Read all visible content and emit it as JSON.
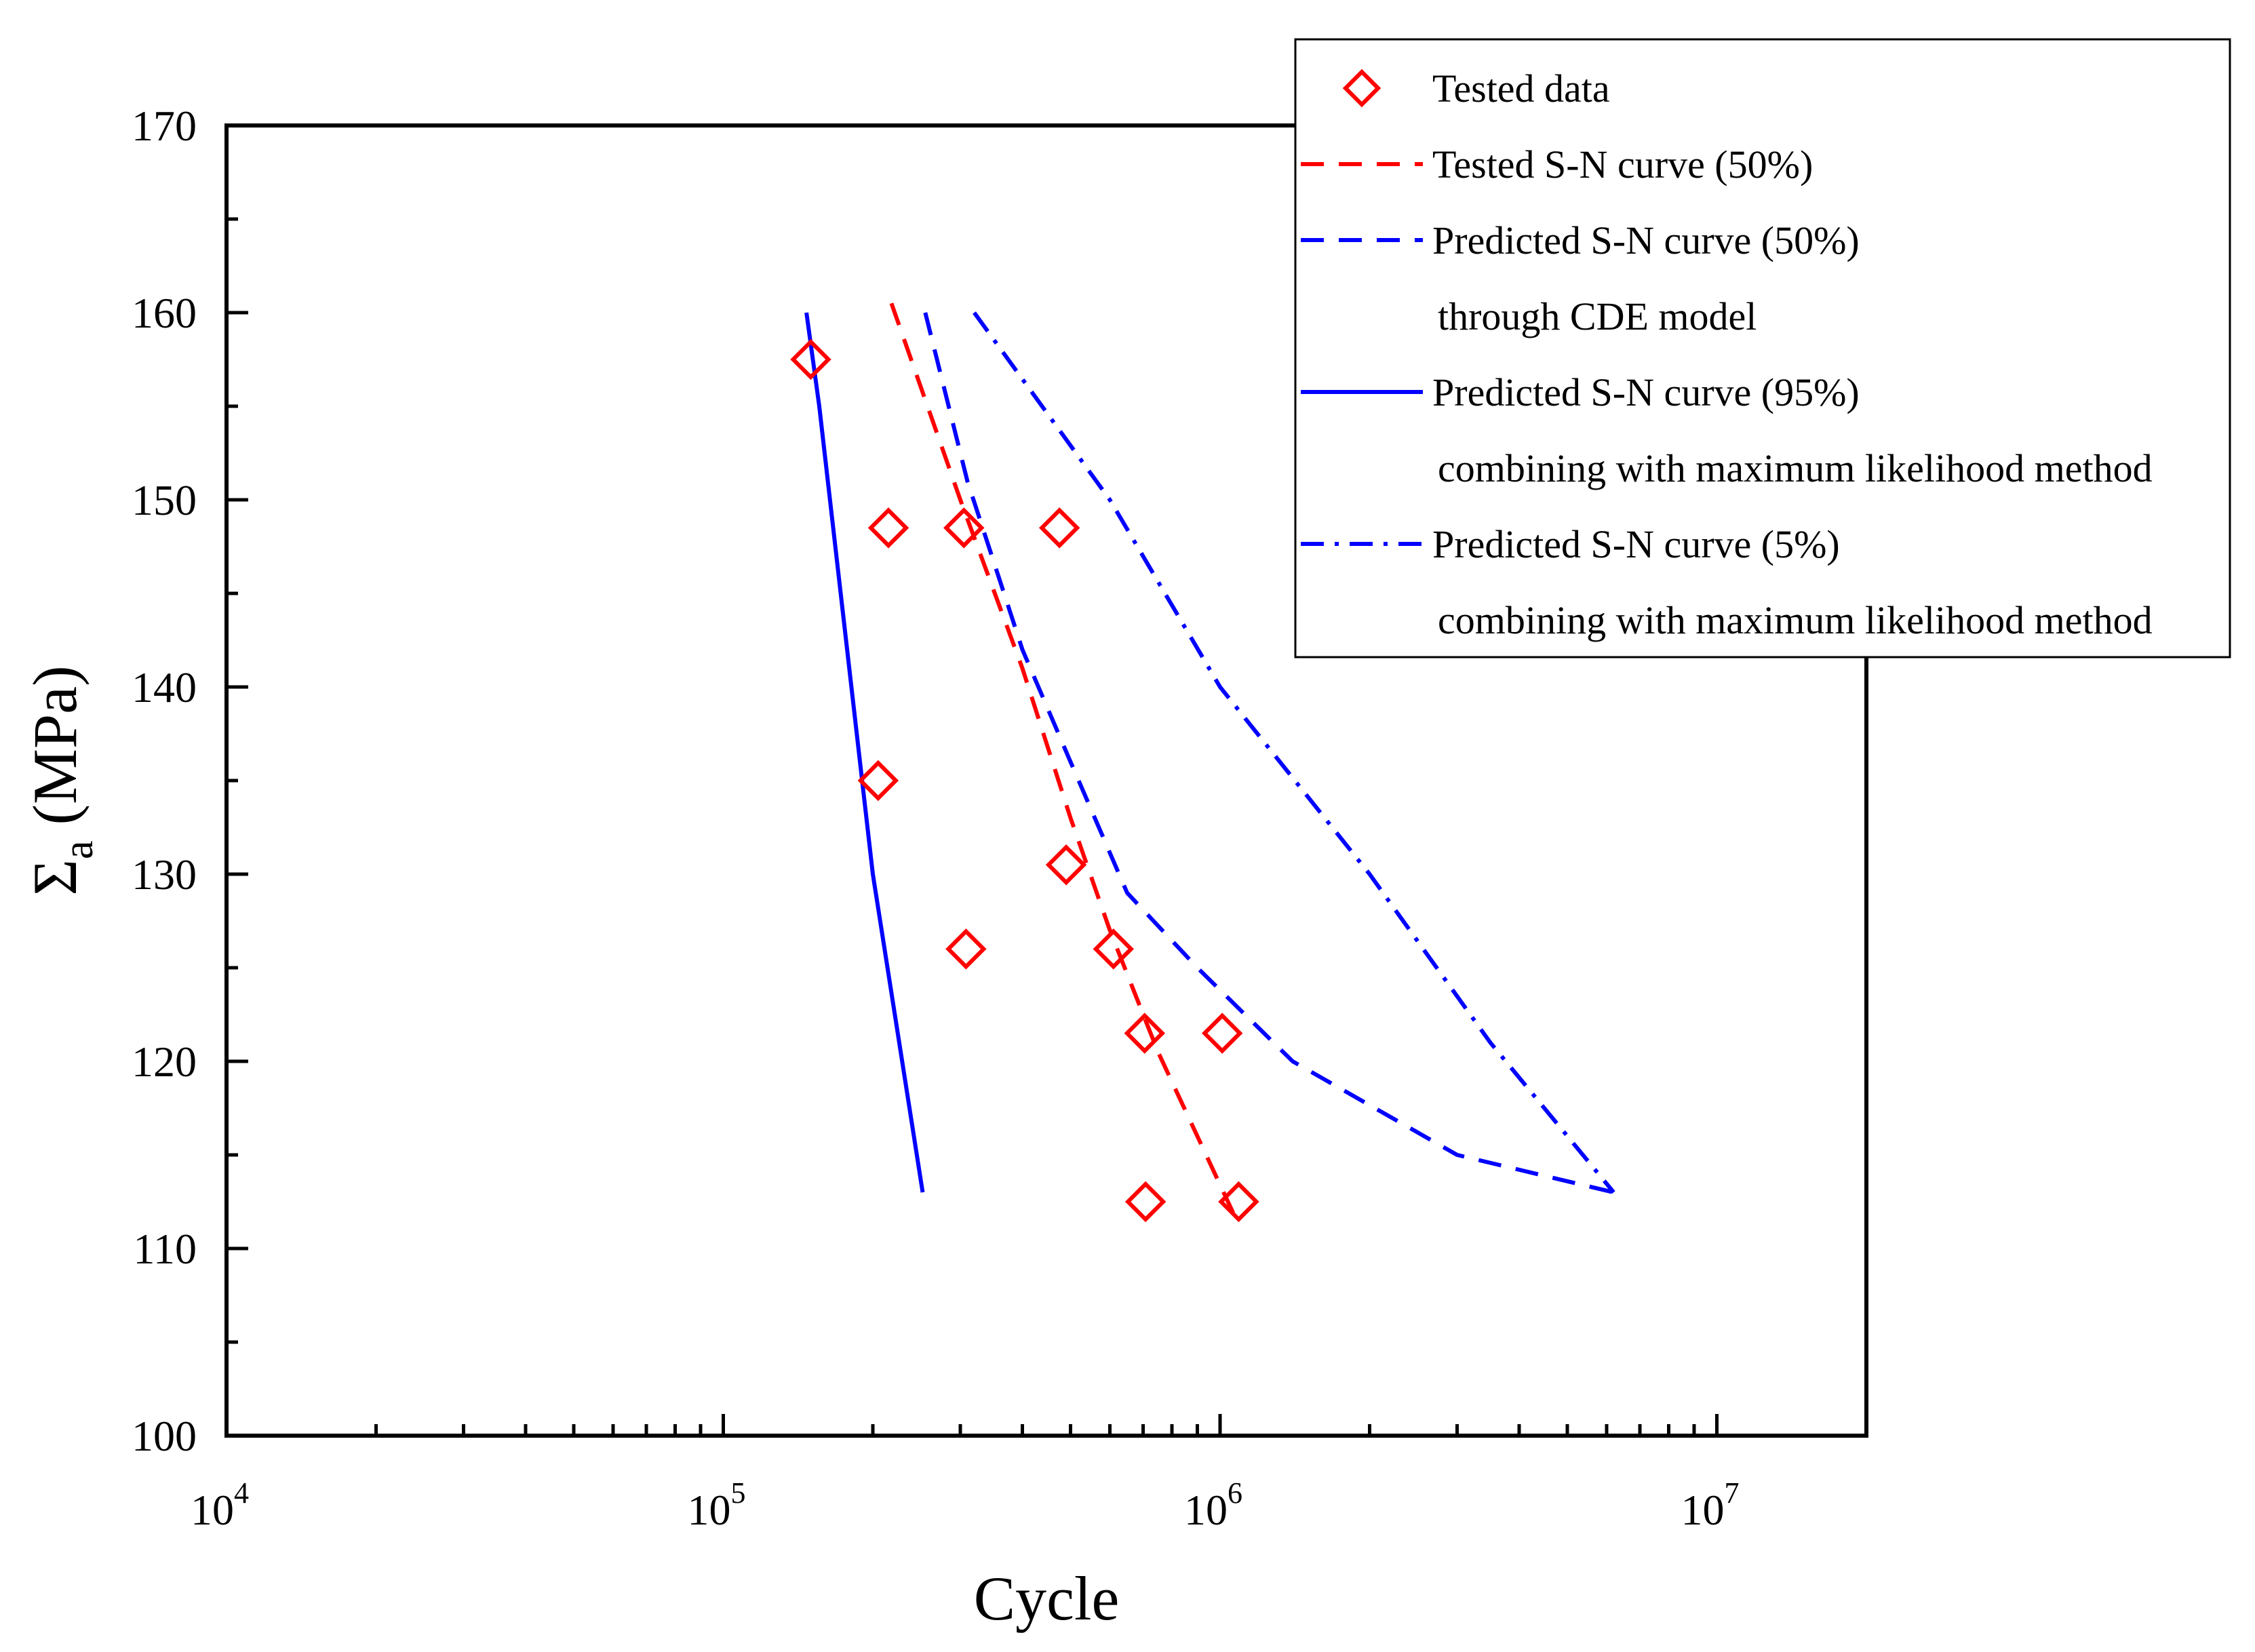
{
  "chart_data": {
    "type": "scatter",
    "title": "",
    "xlabel": "Cycle",
    "ylabel": "Σa (MPa)",
    "ylabel_parts": {
      "symbol": "Σ",
      "subscript": "a",
      "unit": " (MPa)"
    },
    "x_scale": "log",
    "xlim": [
      10000,
      20000000
    ],
    "ylim": [
      100,
      170
    ],
    "x_tick_labels": [
      {
        "value": 10000,
        "base": "10",
        "exp": "4"
      },
      {
        "value": 100000,
        "base": "10",
        "exp": "5"
      },
      {
        "value": 1000000,
        "base": "10",
        "exp": "6"
      },
      {
        "value": 10000000,
        "base": "10",
        "exp": "7"
      }
    ],
    "y_ticks": [
      100,
      110,
      120,
      130,
      140,
      150,
      160,
      170
    ],
    "legend_position": "top-right",
    "series": [
      {
        "name": "Tested data",
        "kind": "markers",
        "marker": "diamond",
        "color": "#ff0000",
        "points": [
          [
            150000,
            157.5
          ],
          [
            215000,
            148.5
          ],
          [
            305000,
            148.5
          ],
          [
            475000,
            148.5
          ],
          [
            205000,
            135
          ],
          [
            490000,
            130.5
          ],
          [
            308000,
            126
          ],
          [
            610000,
            126
          ],
          [
            705000,
            121.5
          ],
          [
            1010000,
            121.5
          ],
          [
            708000,
            112.5
          ],
          [
            1090000,
            112.5
          ]
        ]
      },
      {
        "name": "Tested S-N curve (50%)",
        "kind": "line",
        "dash": "dashed",
        "color": "#ff0000",
        "points": [
          [
            218000,
            160.5
          ],
          [
            300000,
            150
          ],
          [
            400000,
            141
          ],
          [
            500000,
            133
          ],
          [
            600000,
            127
          ],
          [
            750000,
            120.5
          ],
          [
            900000,
            116
          ],
          [
            1080000,
            111.5
          ]
        ]
      },
      {
        "name": "Predicted S-N curve (50%)",
        "name_line2": "through CDE model",
        "kind": "line",
        "dash": "dashed",
        "color": "#0000ff",
        "points": [
          [
            255000,
            160
          ],
          [
            310000,
            151
          ],
          [
            400000,
            142
          ],
          [
            500000,
            136
          ],
          [
            650000,
            129
          ],
          [
            900000,
            125
          ],
          [
            1400000,
            120
          ],
          [
            3000000,
            115
          ],
          [
            6200000,
            113
          ]
        ]
      },
      {
        "name": "Predicted S-N curve (95%)",
        "name_line2": "combining with maximum likelihood method",
        "kind": "line",
        "dash": "solid",
        "color": "#0000ff",
        "points": [
          [
            147000,
            160
          ],
          [
            156000,
            155
          ],
          [
            200000,
            130
          ],
          [
            252000,
            113
          ]
        ]
      },
      {
        "name": "Predicted S-N curve (5%)",
        "name_line2": "combining with maximum likelihood method",
        "kind": "line",
        "dash": "dashdot",
        "color": "#0000ff",
        "points": [
          [
            320000,
            160
          ],
          [
            600000,
            150
          ],
          [
            1000000,
            140
          ],
          [
            2000000,
            130
          ],
          [
            3500000,
            121
          ],
          [
            6200000,
            113
          ]
        ]
      }
    ]
  }
}
